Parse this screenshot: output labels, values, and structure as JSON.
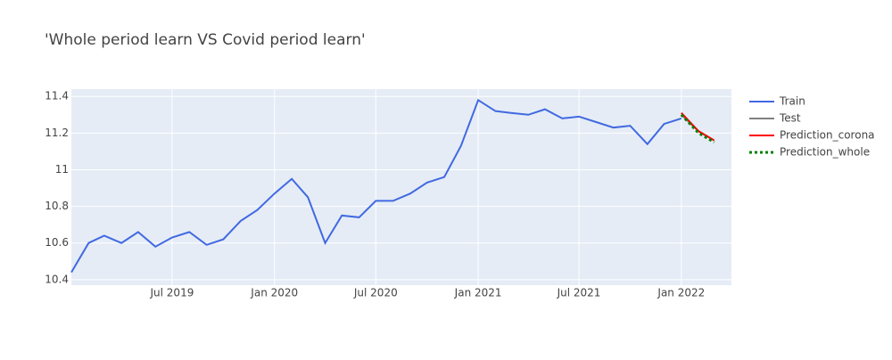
{
  "chart_data": {
    "type": "line",
    "title": "'Whole period learn VS Covid period learn'",
    "x": [
      "2019-01",
      "2019-02",
      "2019-03",
      "2019-04",
      "2019-05",
      "2019-06",
      "2019-07",
      "2019-08",
      "2019-09",
      "2019-10",
      "2019-11",
      "2019-12",
      "2020-01",
      "2020-02",
      "2020-03",
      "2020-04",
      "2020-05",
      "2020-06",
      "2020-07",
      "2020-08",
      "2020-09",
      "2020-10",
      "2020-11",
      "2020-12",
      "2021-01",
      "2021-02",
      "2021-03",
      "2021-04",
      "2021-05",
      "2021-06",
      "2021-07",
      "2021-08",
      "2021-09",
      "2021-10",
      "2021-11",
      "2021-12",
      "2022-01",
      "2022-02",
      "2022-03"
    ],
    "series": [
      {
        "name": "Train",
        "color": "#4169e1",
        "dash": "solid",
        "values": [
          10.44,
          10.6,
          10.64,
          10.6,
          10.66,
          10.58,
          10.63,
          10.66,
          10.59,
          10.62,
          10.72,
          10.78,
          10.87,
          10.95,
          10.85,
          10.6,
          10.75,
          10.74,
          10.83,
          10.83,
          10.87,
          10.93,
          10.96,
          11.13,
          11.38,
          11.32,
          11.31,
          11.3,
          11.33,
          11.28,
          11.29,
          11.26,
          11.23,
          11.24,
          11.14,
          11.25,
          11.28,
          null,
          null
        ]
      },
      {
        "name": "Test",
        "color": "#808080",
        "dash": "solid",
        "values": [
          null,
          null,
          null,
          null,
          null,
          null,
          null,
          null,
          null,
          null,
          null,
          null,
          null,
          null,
          null,
          null,
          null,
          null,
          null,
          null,
          null,
          null,
          null,
          null,
          null,
          null,
          null,
          null,
          null,
          null,
          null,
          null,
          null,
          null,
          null,
          null,
          11.3,
          11.21,
          11.16
        ]
      },
      {
        "name": "Prediction_corona",
        "color": "#ff0000",
        "dash": "solid",
        "values": [
          null,
          null,
          null,
          null,
          null,
          null,
          null,
          null,
          null,
          null,
          null,
          null,
          null,
          null,
          null,
          null,
          null,
          null,
          null,
          null,
          null,
          null,
          null,
          null,
          null,
          null,
          null,
          null,
          null,
          null,
          null,
          null,
          null,
          null,
          null,
          null,
          11.31,
          11.21,
          11.16
        ]
      },
      {
        "name": "Prediction_whole",
        "color": "#008000",
        "dash": "dot",
        "values": [
          null,
          null,
          null,
          null,
          null,
          null,
          null,
          null,
          null,
          null,
          null,
          null,
          null,
          null,
          null,
          null,
          null,
          null,
          null,
          null,
          null,
          null,
          null,
          null,
          null,
          null,
          null,
          null,
          null,
          null,
          null,
          null,
          null,
          null,
          null,
          null,
          11.3,
          11.2,
          11.15
        ]
      }
    ],
    "xlim": [
      "2019-01",
      "2022-04"
    ],
    "xticks": [
      {
        "value": "2019-07",
        "label": "Jul 2019"
      },
      {
        "value": "2020-01",
        "label": "Jan 2020"
      },
      {
        "value": "2020-07",
        "label": "Jul 2020"
      },
      {
        "value": "2021-01",
        "label": "Jan 2021"
      },
      {
        "value": "2021-07",
        "label": "Jul 2021"
      },
      {
        "value": "2022-01",
        "label": "Jan 2022"
      }
    ],
    "ylim": [
      10.37,
      11.44
    ],
    "yticks": [
      10.4,
      10.6,
      10.8,
      11,
      11.2,
      11.4
    ],
    "grid": true,
    "legend": "right"
  }
}
